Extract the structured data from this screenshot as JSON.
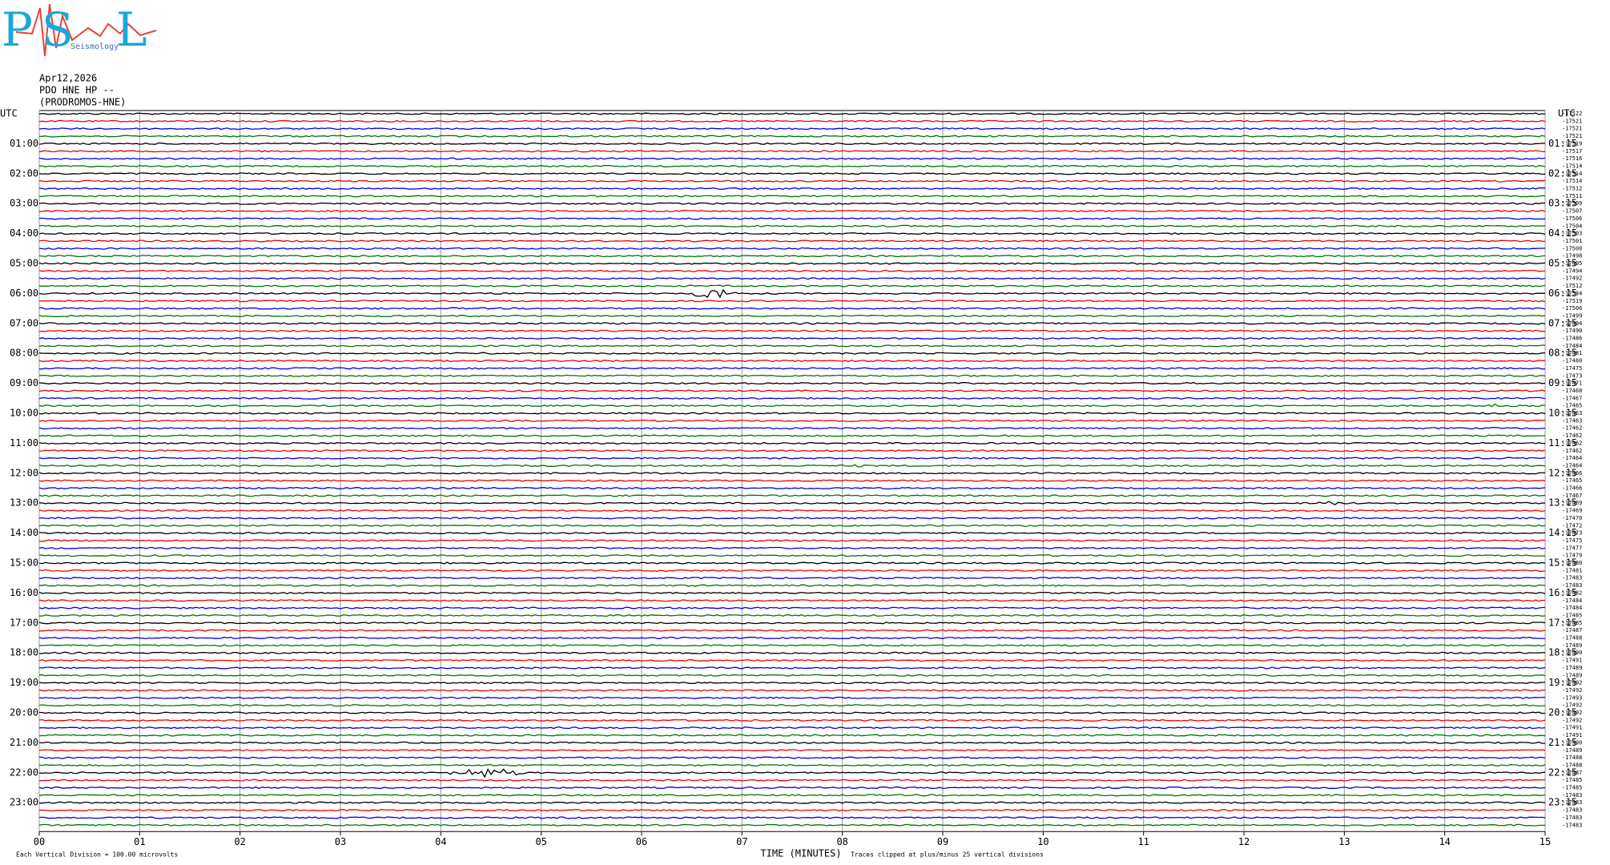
{
  "logo": {
    "letters": [
      "P",
      "S",
      "L"
    ],
    "caption": "Seismology"
  },
  "header": {
    "date": "Apr12,2026",
    "station": "PDO HNE HP --",
    "name": "(PRODROMOS-HNE)"
  },
  "left_axis": {
    "title": "UTC",
    "labels": [
      "01:00",
      "02:00",
      "03:00",
      "04:00",
      "05:00",
      "06:00",
      "07:00",
      "08:00",
      "09:00",
      "10:00",
      "11:00",
      "12:00",
      "13:00",
      "14:00",
      "15:00",
      "16:00",
      "17:00",
      "18:00",
      "19:00",
      "20:00",
      "21:00",
      "22:00",
      "23:00"
    ]
  },
  "right_axis": {
    "title": "UTC",
    "labels": [
      "01:15",
      "02:15",
      "03:15",
      "04:15",
      "05:15",
      "06:15",
      "07:15",
      "08:15",
      "09:15",
      "10:15",
      "11:15",
      "12:15",
      "13:15",
      "14:15",
      "15:15",
      "16:15",
      "17:15",
      "18:15",
      "19:15",
      "20:15",
      "21:15",
      "22:15",
      "23:15"
    ]
  },
  "offsets": [
    -17522,
    -17521,
    -17521,
    -17521,
    -17519,
    -17517,
    -17516,
    -17514,
    -17514,
    -17514,
    -17512,
    -17511,
    -17509,
    -17507,
    -17506,
    -17504,
    -17503,
    -17501,
    -17500,
    -17498,
    -17495,
    -17494,
    -17492,
    -17512,
    -17534,
    -17519,
    -17506,
    -17499,
    -17494,
    -17490,
    -17486,
    -17484,
    -17481,
    -17480,
    -17475,
    -17473,
    -17471,
    -17468,
    -17467,
    -17465,
    -17463,
    -17463,
    -17462,
    -17462,
    -17462,
    -17462,
    -17464,
    -17464,
    -17466,
    -17465,
    -17466,
    -17467,
    -17469,
    -17469,
    -17470,
    -17472,
    -17473,
    -17475,
    -17477,
    -17479,
    -17480,
    -17481,
    -17483,
    -17483,
    -17482,
    -17484,
    -17484,
    -17485,
    -17485,
    -17487,
    -17488,
    -17489,
    -17490,
    -17491,
    -17489,
    -17489,
    -17492,
    -17492,
    -17493,
    -17492,
    -17492,
    -17492,
    -17491,
    -17491,
    -17490,
    -17489,
    -17488,
    -17488,
    -17487,
    -17485,
    -17485,
    -17483,
    -17483,
    -17483,
    -17483,
    -17483
  ],
  "x_axis": {
    "ticks": [
      "00",
      "01",
      "02",
      "03",
      "04",
      "05",
      "06",
      "07",
      "08",
      "09",
      "10",
      "11",
      "12",
      "13",
      "14",
      "15"
    ],
    "title": "TIME (MINUTES)"
  },
  "footer": {
    "scale": "Each Vertical Division =  100.00 microvolts",
    "clip": "Traces clipped at plus/minus 25 vertical divisions"
  }
}
